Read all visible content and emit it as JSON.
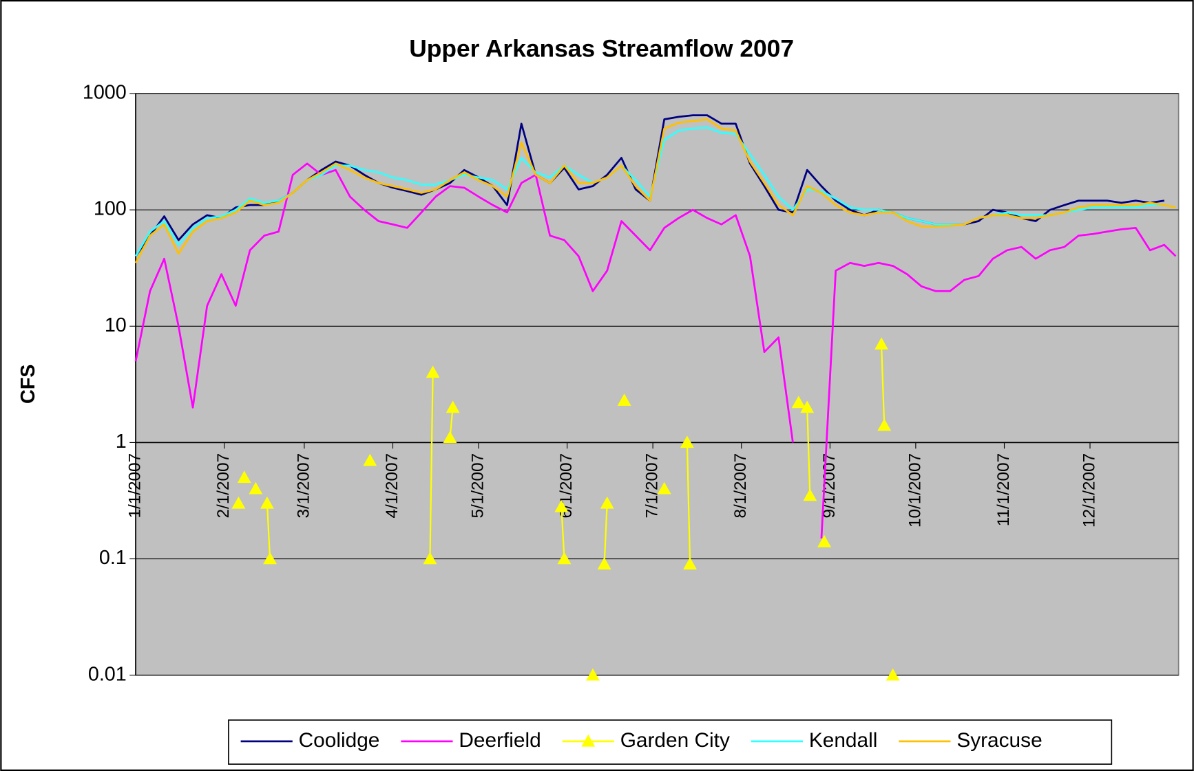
{
  "chart_data": {
    "type": "line",
    "title": "Upper Arkansas Streamflow 2007",
    "y_label": "CFS",
    "yscale": "log",
    "ylim": [
      0.01,
      1000
    ],
    "yticks": [
      0.01,
      0.1,
      1,
      10,
      100,
      1000
    ],
    "xaxis_crosses_at": 1,
    "xlim": [
      "2007-01-01",
      "2008-01-01"
    ],
    "xticks": [
      {
        "value": "2007-01-01",
        "label": "1/1/2007"
      },
      {
        "value": "2007-02-01",
        "label": "2/1/2007"
      },
      {
        "value": "2007-03-01",
        "label": "3/1/2007"
      },
      {
        "value": "2007-04-01",
        "label": "4/1/2007"
      },
      {
        "value": "2007-05-01",
        "label": "5/1/2007"
      },
      {
        "value": "2007-06-01",
        "label": "6/1/2007"
      },
      {
        "value": "2007-07-01",
        "label": "7/1/2007"
      },
      {
        "value": "2007-08-01",
        "label": "8/1/2007"
      },
      {
        "value": "2007-09-01",
        "label": "9/1/2007"
      },
      {
        "value": "2007-10-01",
        "label": "10/1/2007"
      },
      {
        "value": "2007-11-01",
        "label": "11/1/2007"
      },
      {
        "value": "2007-12-01",
        "label": "12/1/2007"
      }
    ],
    "grid": true,
    "plot_background": "#c0c0c0",
    "legend": "bottom",
    "x": [
      "2007-01-01",
      "2007-01-06",
      "2007-01-11",
      "2007-01-16",
      "2007-01-21",
      "2007-01-26",
      "2007-01-31",
      "2007-02-05",
      "2007-02-10",
      "2007-02-15",
      "2007-02-20",
      "2007-02-25",
      "2007-03-02",
      "2007-03-07",
      "2007-03-12",
      "2007-03-17",
      "2007-03-22",
      "2007-03-27",
      "2007-04-01",
      "2007-04-06",
      "2007-04-11",
      "2007-04-16",
      "2007-04-21",
      "2007-04-26",
      "2007-05-01",
      "2007-05-06",
      "2007-05-11",
      "2007-05-16",
      "2007-05-21",
      "2007-05-26",
      "2007-05-31",
      "2007-06-05",
      "2007-06-10",
      "2007-06-15",
      "2007-06-20",
      "2007-06-25",
      "2007-06-30",
      "2007-07-05",
      "2007-07-10",
      "2007-07-15",
      "2007-07-20",
      "2007-07-25",
      "2007-07-30",
      "2007-08-04",
      "2007-08-09",
      "2007-08-14",
      "2007-08-19",
      "2007-08-24",
      "2007-08-29",
      "2007-09-03",
      "2007-09-08",
      "2007-09-13",
      "2007-09-18",
      "2007-09-23",
      "2007-09-28",
      "2007-10-03",
      "2007-10-08",
      "2007-10-13",
      "2007-10-18",
      "2007-10-23",
      "2007-10-28",
      "2007-11-02",
      "2007-11-07",
      "2007-11-12",
      "2007-11-17",
      "2007-11-22",
      "2007-11-27",
      "2007-12-02",
      "2007-12-07",
      "2007-12-12",
      "2007-12-17",
      "2007-12-22",
      "2007-12-27",
      "2007-12-31"
    ],
    "series": [
      {
        "name": "Coolidge",
        "color": "#000080",
        "values": [
          40,
          60,
          88,
          55,
          75,
          90,
          85,
          105,
          110,
          110,
          120,
          140,
          180,
          220,
          260,
          240,
          200,
          170,
          155,
          145,
          135,
          150,
          170,
          220,
          190,
          160,
          110,
          550,
          200,
          170,
          230,
          150,
          160,
          200,
          280,
          150,
          120,
          600,
          630,
          650,
          650,
          550,
          550,
          250,
          160,
          100,
          95,
          220,
          160,
          120,
          100,
          90,
          100,
          95,
          85,
          80,
          75,
          75,
          75,
          80,
          100,
          95,
          85,
          80,
          100,
          110,
          120,
          120,
          120,
          115,
          120,
          115,
          120,
          null
        ]
      },
      {
        "name": "Deerfield",
        "color": "#ff00ff",
        "values": [
          5,
          20,
          38,
          10,
          2,
          15,
          28,
          15,
          45,
          60,
          65,
          200,
          250,
          200,
          220,
          130,
          100,
          80,
          75,
          70,
          95,
          130,
          160,
          155,
          130,
          110,
          95,
          170,
          200,
          60,
          55,
          40,
          20,
          30,
          80,
          60,
          45,
          70,
          85,
          100,
          85,
          75,
          90,
          40,
          6,
          8,
          1,
          null,
          0.15,
          30,
          35,
          33,
          35,
          33,
          28,
          22,
          20,
          20,
          25,
          27,
          38,
          45,
          48,
          38,
          45,
          48,
          60,
          62,
          65,
          68,
          70,
          45,
          50,
          40
        ]
      },
      {
        "name": "Garden City",
        "color": "#ffff00",
        "marker": "triangle",
        "x": [
          "2007-02-06",
          "2007-02-08",
          "2007-02-12",
          "2007-02-16",
          "2007-02-17",
          "2007-03-24",
          "2007-04-14",
          "2007-04-15",
          "2007-04-21",
          "2007-04-22",
          "2007-05-30",
          "2007-05-31",
          "2007-06-10",
          "2007-06-14",
          "2007-06-15",
          "2007-06-21",
          "2007-07-05",
          "2007-07-13",
          "2007-07-14",
          "2007-08-21",
          "2007-08-24",
          "2007-08-25",
          "2007-08-30",
          "2007-09-19",
          "2007-09-20",
          "2007-09-23"
        ],
        "values": [
          0.3,
          0.5,
          0.4,
          0.3,
          0.1,
          0.7,
          0.1,
          4,
          1.1,
          2,
          0.28,
          0.1,
          0.01,
          0.09,
          0.3,
          2.3,
          0.4,
          1,
          0.09,
          2.2,
          2,
          0.35,
          0.14,
          7,
          1.4,
          0.01
        ]
      },
      {
        "name": "Kendall",
        "color": "#33ffff",
        "values": [
          40,
          65,
          80,
          50,
          70,
          85,
          88,
          100,
          125,
          115,
          120,
          140,
          180,
          200,
          240,
          240,
          220,
          210,
          190,
          180,
          165,
          165,
          180,
          200,
          190,
          180,
          150,
          280,
          210,
          190,
          240,
          200,
          170,
          190,
          240,
          180,
          130,
          400,
          480,
          500,
          510,
          460,
          450,
          300,
          200,
          130,
          100,
          150,
          145,
          125,
          105,
          100,
          100,
          95,
          85,
          80,
          75,
          75,
          75,
          85,
          90,
          95,
          90,
          90,
          90,
          95,
          100,
          105,
          105,
          105,
          105,
          110,
          110,
          105
        ]
      },
      {
        "name": "Syracuse",
        "color": "#ffc000",
        "values": [
          35,
          60,
          75,
          42,
          65,
          80,
          85,
          95,
          120,
          110,
          115,
          140,
          180,
          210,
          250,
          220,
          190,
          170,
          160,
          150,
          140,
          150,
          180,
          210,
          180,
          160,
          130,
          380,
          200,
          170,
          240,
          170,
          170,
          190,
          240,
          160,
          120,
          500,
          560,
          580,
          600,
          500,
          480,
          260,
          170,
          110,
          90,
          160,
          140,
          110,
          95,
          90,
          95,
          95,
          80,
          72,
          72,
          73,
          75,
          85,
          90,
          90,
          85,
          85,
          90,
          95,
          105,
          110,
          110,
          110,
          110,
          115,
          110,
          105
        ]
      }
    ]
  }
}
